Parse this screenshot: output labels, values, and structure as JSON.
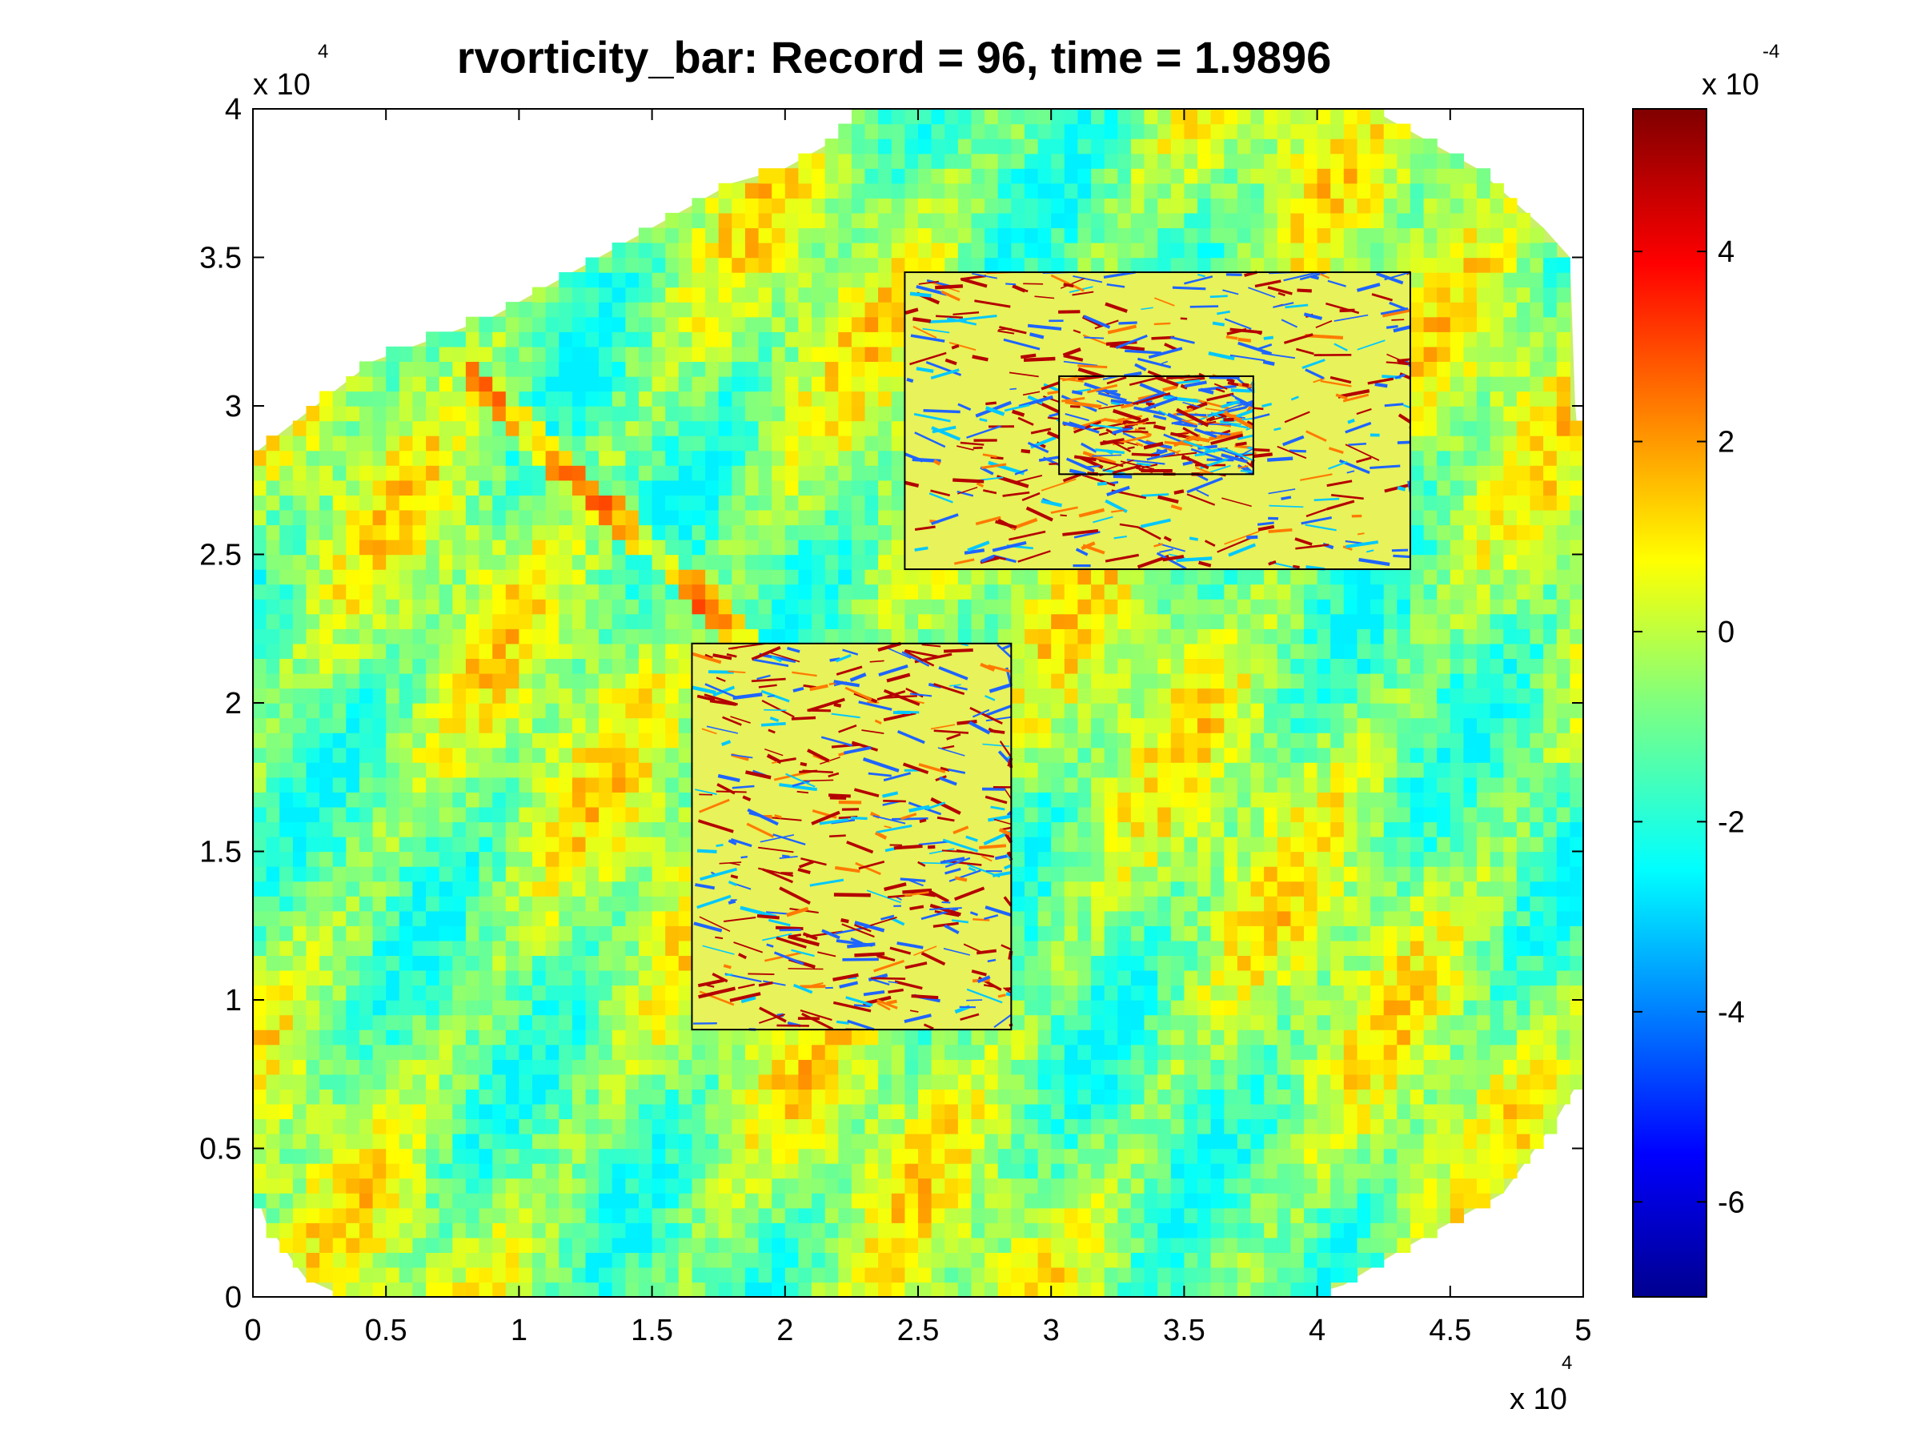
{
  "chart_data": {
    "type": "heatmap",
    "title": "rvorticity_bar:    Record = 96,    time = 1.9896",
    "xlabel": "",
    "ylabel": "",
    "colormap": "jet",
    "grid": false,
    "xlim": [
      0,
      50000
    ],
    "ylim": [
      0,
      40000
    ],
    "x_ticks": [
      "0",
      "0.5",
      "1",
      "1.5",
      "2",
      "2.5",
      "3",
      "3.5",
      "4",
      "4.5",
      "5"
    ],
    "y_ticks": [
      "0",
      "0.5",
      "1",
      "1.5",
      "2",
      "2.5",
      "3",
      "3.5",
      "4"
    ],
    "x_multiplier": {
      "base": "x 10",
      "exponent": "4"
    },
    "y_multiplier": {
      "base": "x 10",
      "exponent": "4"
    },
    "colorbar": {
      "range": [
        -0.0007,
        0.00055
      ],
      "ticks": [
        "-6",
        "-4",
        "-2",
        "0",
        "2",
        "4"
      ],
      "multiplier": {
        "base": "x 10",
        "exponent": "-4"
      },
      "position": "right"
    },
    "nested_grids": [
      {
        "name": "inner-box-1",
        "x": [
          16500,
          28500
        ],
        "y": [
          9000,
          22000
        ]
      },
      {
        "name": "inner-box-2",
        "x": [
          24500,
          43500
        ],
        "y": [
          24500,
          34500
        ]
      },
      {
        "name": "inner-box-3",
        "x": [
          30300,
          37600
        ],
        "y": [
          27700,
          31000
        ]
      }
    ]
  }
}
